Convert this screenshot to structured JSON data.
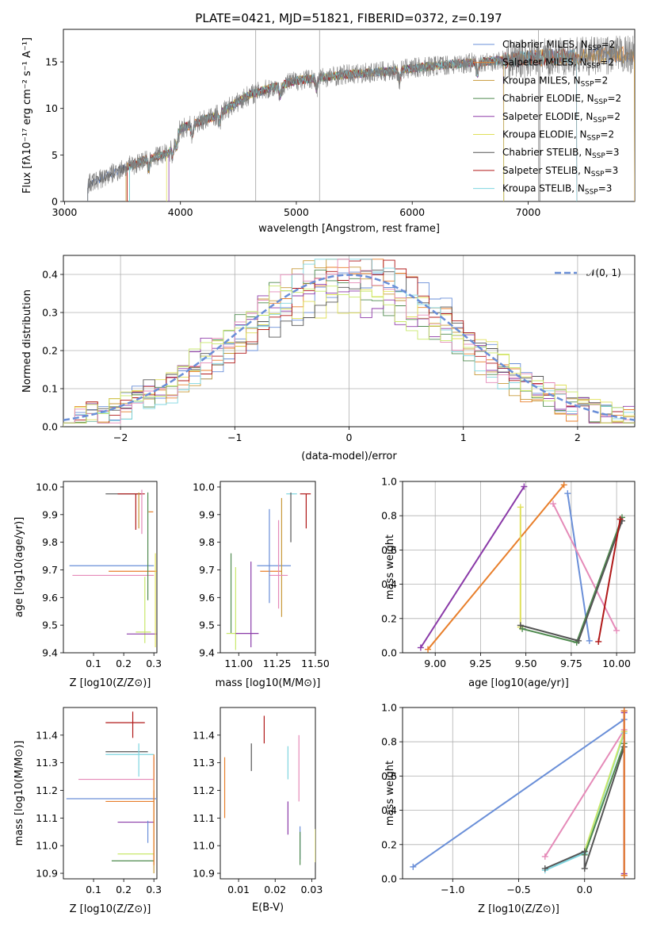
{
  "title": "PLATE=0421, MJD=51821, FIBERID=0372, z=0.197",
  "colors": {
    "chabrier_miles": "#6a8fd8",
    "salpeter_miles": "#e87f2b",
    "kroupa_miles": "#c89a3a",
    "chabrier_elodie": "#4f8a4f",
    "salpeter_elodie": "#8e3aa8",
    "kroupa_elodie": "#e0e05a",
    "chabrier_stelib": "#555555",
    "salpeter_stelib": "#b01818",
    "kroupa_stelib": "#7fd6e0",
    "pink": "#e58ab8",
    "lime": "#c8e86a",
    "purple": "#8a3aa8",
    "data": "#7f7f7f",
    "gaussian": "#6a8fd8"
  },
  "chart_data": [
    {
      "id": "spectrum",
      "type": "line",
      "xlabel": "wavelength [Angstrom, rest frame]",
      "ylabel": "Flux [fλ10⁻¹⁷ erg cm⁻² s⁻¹ A⁻¹]",
      "xlim": [
        2990,
        7920
      ],
      "ylim": [
        0,
        18.5
      ],
      "xticks": [
        "3000",
        "4000",
        "5000",
        "6000",
        "7000"
      ],
      "yticks": [
        "0",
        "5",
        "10",
        "15"
      ],
      "continuum": {
        "x": [
          3200,
          3500,
          3700,
          3900,
          4000,
          4300,
          4600,
          5000,
          5400,
          5800,
          6200,
          6600,
          7000,
          7400,
          7920
        ],
        "y": [
          1.8,
          3.5,
          4.5,
          5.2,
          7.8,
          9.2,
          11.5,
          13.0,
          13.6,
          14.0,
          14.6,
          15.0,
          15.4,
          15.6,
          15.8
        ]
      },
      "model_starts": [
        3200,
        3540,
        3530,
        3560,
        3900,
        3880,
        3200,
        3540,
        3560
      ],
      "model_ends": [
        7920,
        7920,
        7920,
        6790,
        6790,
        6790,
        7100,
        7420,
        7420
      ],
      "legend_position": "upper right",
      "legend": [
        "Chabrier MILES, N_SSP=2",
        "Salpeter MILES, N_SSP=2",
        "Kroupa MILES, N_SSP=2",
        "Chabrier ELODIE, N_SSP=2",
        "Salpeter ELODIE, N_SSP=2",
        "Kroupa ELODIE, N_SSP=2",
        "Chabrier STELIB, N_SSP=3",
        "Salpeter STELIB, N_SSP=3",
        "Kroupa STELIB, N_SSP=3"
      ],
      "legend_parts": [
        {
          "name": "Chabrier MILES, N",
          "sub": "SSP",
          "end": "=2"
        },
        {
          "name": "Salpeter MILES, N",
          "sub": "SSP",
          "end": "=2"
        },
        {
          "name": "Kroupa MILES, N",
          "sub": "SSP",
          "end": "=2"
        },
        {
          "name": "Chabrier ELODIE, N",
          "sub": "SSP",
          "end": "=2"
        },
        {
          "name": "Salpeter ELODIE, N",
          "sub": "SSP",
          "end": "=2"
        },
        {
          "name": "Kroupa ELODIE, N",
          "sub": "SSP",
          "end": "=2"
        },
        {
          "name": "Chabrier STELIB, N",
          "sub": "SSP",
          "end": "=3"
        },
        {
          "name": "Salpeter STELIB, N",
          "sub": "SSP",
          "end": "=3"
        },
        {
          "name": "Kroupa STELIB, N",
          "sub": "SSP",
          "end": "=3"
        }
      ]
    },
    {
      "id": "residuals",
      "type": "histogram",
      "xlabel": "(data-model)/error",
      "ylabel": "Normed distribution",
      "xlim": [
        -2.5,
        2.5
      ],
      "ylim": [
        0,
        0.45
      ],
      "xticks": [
        "−2",
        "−1",
        "0",
        "1",
        "2"
      ],
      "yticks": [
        "0.0",
        "0.1",
        "0.2",
        "0.3",
        "0.4"
      ],
      "grid": true,
      "legend": [
        "𝒩(0, 1)"
      ],
      "legend_position": "upper right",
      "bins": 50
    },
    {
      "id": "age_vs_Z",
      "type": "scatter",
      "xlabel": "Z [log10(Z/Z⊙)]",
      "ylabel": "age  [log10(age/yr)]",
      "xlim": [
        0.0,
        0.31
      ],
      "ylim": [
        9.4,
        10.02
      ],
      "xticks": [
        "0.1",
        "0.2",
        "0.3"
      ],
      "yticks": [
        "9.4",
        "9.5",
        "9.6",
        "9.7",
        "9.8",
        "9.9",
        "10.0"
      ],
      "points": [
        {
          "x": 0.22,
          "y": 9.975,
          "xerr": [
            0.08,
            0.04
          ],
          "yerr": [
            0.0,
            0.0
          ]
        },
        {
          "x": 0.24,
          "y": 9.975,
          "xerr": [
            0.06,
            0.03
          ],
          "yerr": [
            0.13,
            0.0
          ]
        },
        {
          "x": 0.25,
          "y": 9.97,
          "xerr": [
            0.0,
            0.0
          ],
          "yerr": [
            0.12,
            0.01
          ]
        },
        {
          "x": 0.26,
          "y": 9.93,
          "xerr": [
            0.0,
            0.0
          ],
          "yerr": [
            0.1,
            0.06
          ]
        },
        {
          "x": 0.29,
          "y": 9.91,
          "xerr": [
            0.0,
            0.0
          ],
          "yerr": [
            0.0,
            0.0
          ]
        },
        {
          "x": 0.17,
          "y": 9.715,
          "xerr": [
            0.15,
            0.13
          ],
          "yerr": [
            0.0,
            0.0
          ]
        },
        {
          "x": 0.25,
          "y": 9.695,
          "xerr": [
            0.1,
            0.06
          ],
          "yerr": [
            0.0,
            0.0
          ]
        },
        {
          "x": 0.15,
          "y": 9.68,
          "xerr": [
            0.12,
            0.15
          ],
          "yerr": [
            0.0,
            0.0
          ]
        },
        {
          "x": 0.28,
          "y": 9.68,
          "xerr": [
            0.0,
            0.0
          ],
          "yerr": [
            0.09,
            0.3
          ]
        },
        {
          "x": 0.27,
          "y": 9.475,
          "xerr": [
            0.03,
            0.02
          ],
          "yerr": [
            0.04,
            0.2
          ]
        },
        {
          "x": 0.26,
          "y": 9.468,
          "xerr": [
            0.05,
            0.05
          ],
          "yerr": [
            0.0,
            0.0
          ]
        },
        {
          "x": 0.305,
          "y": 9.6,
          "xerr": [
            0.0,
            0.0
          ],
          "yerr": [
            0.18,
            0.16
          ]
        }
      ]
    },
    {
      "id": "age_vs_mass",
      "type": "scatter",
      "xlabel": "mass [log10(M/M⊙)]",
      "ylabel": "",
      "xlim": [
        10.88,
        11.5
      ],
      "ylim": [
        9.4,
        10.02
      ],
      "xticks": [
        "11.00",
        "11.25",
        "11.50"
      ],
      "yticks": [
        "9.4",
        "9.5",
        "9.6",
        "9.7",
        "9.8",
        "9.9",
        "10.0"
      ],
      "points": [
        {
          "x": 11.36,
          "y": 9.975,
          "xerr": [
            0.05,
            0.02
          ],
          "yerr": [
            0.0,
            0.0
          ]
        },
        {
          "x": 11.44,
          "y": 9.975,
          "xerr": [
            0.04,
            0.03
          ],
          "yerr": [
            0.125,
            0.0
          ]
        },
        {
          "x": 11.34,
          "y": 9.9,
          "xerr": [
            0.0,
            0.0
          ],
          "yerr": [
            0.1,
            0.08
          ]
        },
        {
          "x": 11.22,
          "y": 9.715,
          "xerr": [
            0.1,
            0.12
          ],
          "yerr": [
            0.0,
            0.0
          ]
        },
        {
          "x": 11.2,
          "y": 9.695,
          "xerr": [
            0.06,
            0.08
          ],
          "yerr": [
            0.0,
            0.0
          ]
        },
        {
          "x": 11.28,
          "y": 9.69,
          "xerr": [
            0.0,
            0.0
          ],
          "yerr": [
            0.16,
            0.27
          ]
        },
        {
          "x": 11.26,
          "y": 9.68,
          "xerr": [
            0.06,
            0.06
          ],
          "yerr": [
            0.12,
            0.2
          ]
        },
        {
          "x": 11.2,
          "y": 9.7,
          "xerr": [
            0.0,
            0.0
          ],
          "yerr": [
            0.12,
            0.22
          ]
        },
        {
          "x": 10.95,
          "y": 9.6,
          "xerr": [
            0.0,
            0.0
          ],
          "yerr": [
            0.13,
            0.16
          ]
        },
        {
          "x": 10.98,
          "y": 9.55,
          "xerr": [
            0.0,
            0.0
          ],
          "yerr": [
            0.14,
            0.16
          ]
        },
        {
          "x": 10.98,
          "y": 9.47,
          "xerr": [
            0.06,
            0.01
          ],
          "yerr": [
            0.0,
            0.0
          ]
        },
        {
          "x": 11.08,
          "y": 9.47,
          "xerr": [
            0.1,
            0.05
          ],
          "yerr": [
            0.05,
            0.26
          ]
        }
      ]
    },
    {
      "id": "weight_vs_age",
      "type": "line",
      "xlabel": "age  [log10(age/yr)]",
      "ylabel": "mass weight",
      "xlim": [
        8.82,
        10.1
      ],
      "ylim": [
        0,
        1.0
      ],
      "xticks": [
        "9.00",
        "9.25",
        "9.50",
        "9.75",
        "10.00"
      ],
      "yticks": [
        "0.0",
        "0.2",
        "0.4",
        "0.6",
        "0.8",
        "1.0"
      ],
      "grid": true,
      "series": [
        {
          "color": "chabrier_miles",
          "x": [
            9.73,
            9.85
          ],
          "y": [
            0.93,
            0.07
          ]
        },
        {
          "color": "salpeter_miles",
          "x": [
            8.96,
            9.71
          ],
          "y": [
            0.02,
            0.98
          ]
        },
        {
          "color": "kroupa_elodie",
          "x": [
            9.47,
            9.47
          ],
          "y": [
            0.15,
            0.85
          ]
        },
        {
          "color": "pink",
          "x": [
            9.65,
            10.0
          ],
          "y": [
            0.87,
            0.13
          ]
        },
        {
          "color": "purple",
          "x": [
            8.92,
            9.49
          ],
          "y": [
            0.03,
            0.97
          ]
        },
        {
          "color": "chabrier_elodie",
          "x": [
            9.48,
            9.78,
            10.03
          ],
          "y": [
            0.14,
            0.06,
            0.79
          ]
        },
        {
          "color": "chabrier_stelib",
          "x": [
            9.47,
            9.79,
            10.03
          ],
          "y": [
            0.16,
            0.07,
            0.77
          ]
        },
        {
          "color": "salpeter_stelib",
          "x": [
            9.9,
            10.02
          ],
          "y": [
            0.065,
            0.78
          ]
        }
      ]
    },
    {
      "id": "mass_vs_Z",
      "type": "scatter",
      "xlabel": "Z [log10(Z/Z⊙)]",
      "ylabel": "mass [log10(M/M⊙)]",
      "xlim": [
        0.0,
        0.31
      ],
      "ylim": [
        10.88,
        11.5
      ],
      "xticks": [
        "0.1",
        "0.2",
        "0.3"
      ],
      "yticks": [
        "10.9",
        "11.0",
        "11.1",
        "11.2",
        "11.3",
        "11.4"
      ],
      "points": [
        {
          "x": 0.23,
          "y": 11.445,
          "xerr": [
            0.09,
            0.04
          ],
          "yerr": [
            0.055,
            0.04
          ]
        },
        {
          "x": 0.24,
          "y": 11.34,
          "xerr": [
            0.1,
            0.04
          ],
          "yerr": [
            0.0,
            0.0
          ]
        },
        {
          "x": 0.25,
          "y": 11.33,
          "xerr": [
            0.11,
            0.05
          ],
          "yerr": [
            0.08,
            0.04
          ]
        },
        {
          "x": 0.3,
          "y": 11.24,
          "xerr": [
            0.25,
            0.0
          ],
          "yerr": [
            0.0,
            0.08
          ]
        },
        {
          "x": 0.26,
          "y": 11.17,
          "xerr": [
            0.25,
            0.05
          ],
          "yerr": [
            0.0,
            0.0
          ]
        },
        {
          "x": 0.25,
          "y": 11.16,
          "xerr": [
            0.11,
            0.05
          ],
          "yerr": [
            0.0,
            0.0
          ]
        },
        {
          "x": 0.25,
          "y": 11.085,
          "xerr": [
            0.07,
            0.05
          ],
          "yerr": [
            0.0,
            0.0
          ]
        },
        {
          "x": 0.28,
          "y": 11.05,
          "xerr": [
            0.0,
            0.0
          ],
          "yerr": [
            0.04,
            0.04
          ]
        },
        {
          "x": 0.3,
          "y": 11.0,
          "xerr": [
            0.0,
            0.0
          ],
          "yerr": [
            0.1,
            0.2
          ]
        },
        {
          "x": 0.25,
          "y": 10.97,
          "xerr": [
            0.07,
            0.05
          ],
          "yerr": [
            0.0,
            0.0
          ]
        },
        {
          "x": 0.26,
          "y": 10.945,
          "xerr": [
            0.1,
            0.04
          ],
          "yerr": [
            0.0,
            0.0
          ]
        },
        {
          "x": 0.3,
          "y": 11.15,
          "xerr": [
            0.0,
            0.0
          ],
          "yerr": [
            0.22,
            0.18
          ]
        }
      ]
    },
    {
      "id": "mass_vs_EBV",
      "type": "scatter",
      "xlabel": "E(B-V)",
      "ylabel": "",
      "xlim": [
        0.005,
        0.031
      ],
      "ylim": [
        10.88,
        11.5
      ],
      "xticks": [
        "0.01",
        "0.02",
        "0.03"
      ],
      "yticks": [
        "10.9",
        "11.0",
        "11.1",
        "11.2",
        "11.3",
        "11.4"
      ],
      "points": [
        {
          "x": 0.017,
          "y": 11.42,
          "yerr": [
            0.05,
            0.05
          ],
          "color": "salpeter_stelib"
        },
        {
          "x": 0.0135,
          "y": 11.32,
          "yerr": [
            0.05,
            0.05
          ],
          "color": "chabrier_stelib"
        },
        {
          "x": 0.0062,
          "y": 11.21,
          "yerr": [
            0.11,
            0.11
          ],
          "color": "salpeter_miles"
        },
        {
          "x": 0.0235,
          "y": 11.3,
          "yerr": [
            0.06,
            0.06
          ],
          "color": "kroupa_stelib"
        },
        {
          "x": 0.0265,
          "y": 11.28,
          "yerr": [
            0.12,
            0.12
          ],
          "color": "pink"
        },
        {
          "x": 0.0235,
          "y": 11.1,
          "yerr": [
            0.06,
            0.06
          ],
          "color": "purple"
        },
        {
          "x": 0.0268,
          "y": 11.01,
          "yerr": [
            0.06,
            0.06
          ],
          "color": "chabrier_miles"
        },
        {
          "x": 0.0268,
          "y": 10.99,
          "yerr": [
            0.06,
            0.06
          ],
          "color": "chabrier_elodie"
        },
        {
          "x": 0.031,
          "y": 11.0,
          "yerr": [
            0.06,
            0.06
          ],
          "color": "kroupa_elodie"
        }
      ]
    },
    {
      "id": "weight_vs_Z",
      "type": "line",
      "xlabel": "Z [log10(Z/Z⊙)]",
      "ylabel": "mass weight",
      "xlim": [
        -1.38,
        0.38
      ],
      "ylim": [
        0,
        1.0
      ],
      "xticks": [
        "−1.0",
        "−0.5",
        "0.0"
      ],
      "yticks": [
        "0.0",
        "0.2",
        "0.4",
        "0.6",
        "0.8",
        "1.0"
      ],
      "grid": true,
      "series": [
        {
          "color": "chabrier_miles",
          "x": [
            -1.3,
            0.3
          ],
          "y": [
            0.07,
            0.93
          ]
        },
        {
          "color": "pink",
          "x": [
            -0.3,
            0.3
          ],
          "y": [
            0.13,
            0.87
          ]
        },
        {
          "color": "kroupa_stelib",
          "x": [
            -0.3,
            0.0,
            0.3
          ],
          "y": [
            0.05,
            0.15,
            0.85
          ]
        },
        {
          "color": "lime",
          "x": [
            0.0,
            0.3
          ],
          "y": [
            0.16,
            0.86
          ]
        },
        {
          "color": "chabrier_elodie",
          "x": [
            0.0,
            0.3
          ],
          "y": [
            0.14,
            0.79
          ]
        },
        {
          "color": "chabrier_stelib",
          "x": [
            -0.3,
            0.0,
            0.0,
            0.3
          ],
          "y": [
            0.06,
            0.16,
            0.06,
            0.77
          ]
        },
        {
          "color": "salpeter_stelib",
          "x": [
            0.3,
            0.3
          ],
          "y": [
            0.02,
            0.98
          ]
        },
        {
          "color": "purple",
          "x": [
            0.3,
            0.3
          ],
          "y": [
            0.03,
            0.97
          ]
        },
        {
          "color": "salpeter_miles",
          "x": [
            0.3,
            0.3
          ],
          "y": [
            0.02,
            0.98
          ]
        }
      ]
    }
  ]
}
